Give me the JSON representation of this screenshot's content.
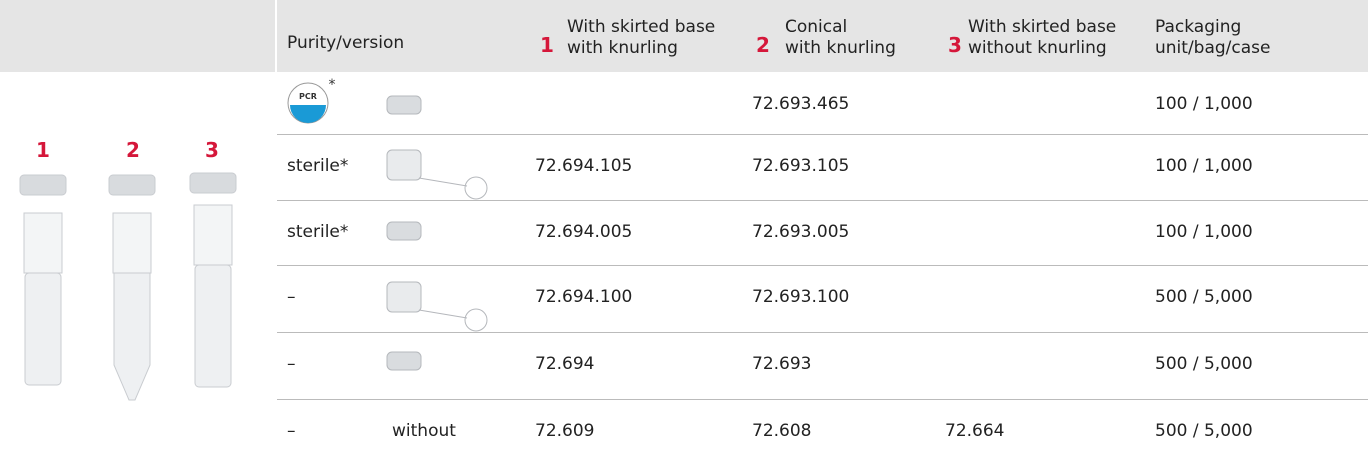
{
  "header": {
    "columns": [
      {
        "label": "Purity/version"
      },
      {
        "number": "1",
        "label": "With skirted base\nwith knurling"
      },
      {
        "number": "2",
        "label": "Conical\nwith knurling"
      },
      {
        "number": "3",
        "label": "With skirted base\nwithout knurling"
      },
      {
        "label": "Packaging\nunit/bag/case"
      }
    ]
  },
  "tube_labels": [
    "1",
    "2",
    "3"
  ],
  "pcr_badge": {
    "text": "PCR",
    "mark": "*"
  },
  "rows": [
    {
      "c2": "72.693.465",
      "packaging": "100 / 1,000"
    },
    {
      "purity": "sterile*",
      "c1": "72.694.105",
      "c2": "72.693.105",
      "packaging": "100 / 1,000"
    },
    {
      "purity": "sterile*",
      "c1": "72.694.005",
      "c2": "72.693.005",
      "packaging": "100 / 1,000"
    },
    {
      "purity": "–",
      "c1": "72.694.100",
      "c2": "72.693.100",
      "packaging": "500 / 5,000"
    },
    {
      "purity": "–",
      "c1": "72.694",
      "c2": "72.693",
      "packaging": "500 / 5,000"
    },
    {
      "purity": "–",
      "closure": "without",
      "c1": "72.609",
      "c2": "72.608",
      "c3": "72.664",
      "packaging": "500 / 5,000"
    }
  ]
}
